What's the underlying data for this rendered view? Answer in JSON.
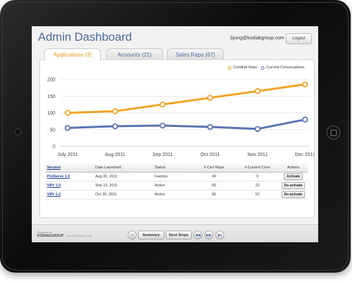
{
  "header": {
    "title": "Admin Dashboard",
    "user_email": "bjung@kodiakgroup.com",
    "logout_label": "Logout"
  },
  "tabs": [
    {
      "label": "Applications (3)",
      "active": true
    },
    {
      "label": "Accounts (21)",
      "active": false
    },
    {
      "label": "Sales Reps (67)",
      "active": false
    }
  ],
  "colors": {
    "certified": "#f0a326",
    "conversations": "#5a73b0",
    "title": "#4a6a9a"
  },
  "chart_data": {
    "type": "line",
    "categories": [
      "July 2011",
      "Aug 2011",
      "Sep 2011",
      "Oct 2011",
      "Nov 2011",
      "Dec 2011"
    ],
    "series": [
      {
        "name": "Certified Reps",
        "values": [
          100,
          105,
          125,
          145,
          165,
          185
        ]
      },
      {
        "name": "Current Conversations",
        "values": [
          55,
          60,
          62,
          58,
          52,
          80
        ]
      }
    ],
    "ylim": [
      0,
      200
    ],
    "yticks": [
      "0",
      "50",
      "100",
      "150",
      "200"
    ],
    "grid": true,
    "legend": "top-right"
  },
  "table": {
    "headers": [
      "Version",
      "Date Launched",
      "Status",
      "# Cert Reps",
      "# Current Conv",
      "Actions"
    ],
    "rows": [
      {
        "version": "ProServe 1.0",
        "date": "Aug 20, 2011",
        "status": "Inactive",
        "cert": "40",
        "conv": "6",
        "action": "Activate"
      },
      {
        "version": "ViPr 1.0",
        "date": "Sep 13, 2011",
        "status": "Active",
        "cert": "65",
        "conv": "22",
        "action": "De-activate"
      },
      {
        "version": "ViPr 1.2",
        "date": "Oct 30, 2011",
        "status": "Active",
        "cert": "80",
        "conv": "52",
        "action": "De-activate"
      }
    ]
  },
  "footer": {
    "powered_by": "Powered by",
    "brand": "KODIAKGROUP",
    "build": "Build ViPrld Rev 22 R38",
    "summary_label": "Summary",
    "next_steps_label": "Next Steps",
    "home_icon": "house-icon",
    "prev_icon": "rewind-icon",
    "next_icon": "fast-forward-icon",
    "last_icon": "skip-forward-icon"
  }
}
